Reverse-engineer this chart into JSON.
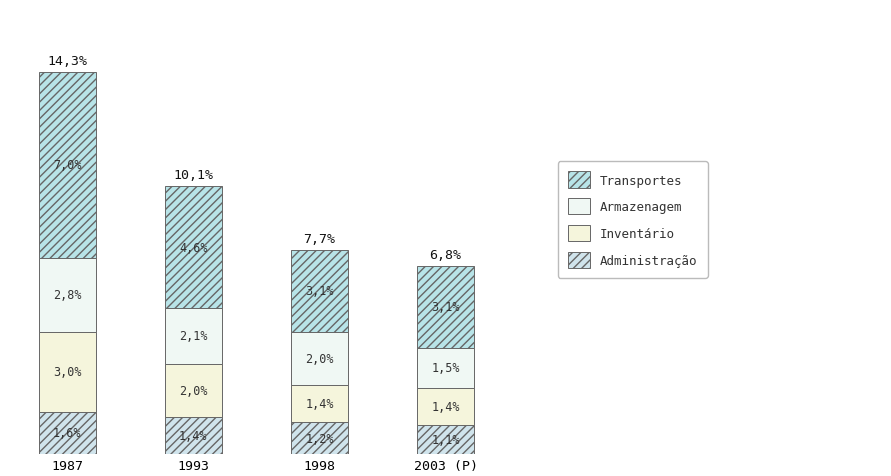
{
  "years": [
    "1987",
    "1993",
    "1998",
    "2003 (P)"
  ],
  "administracao": [
    1.6,
    1.4,
    1.2,
    1.1
  ],
  "inventario": [
    3.0,
    2.0,
    1.4,
    1.4
  ],
  "armazenagem": [
    2.8,
    2.1,
    2.0,
    1.5
  ],
  "transportes": [
    7.0,
    4.6,
    3.1,
    3.1
  ],
  "totals": [
    14.3,
    10.1,
    7.7,
    6.8
  ],
  "background_color": "#ffffff",
  "color_transportes": "#b8e4e8",
  "color_armazenagem": "#f0f8f4",
  "color_inventario": "#f5f5dc",
  "color_administracao": "#d0e4ec",
  "bar_width": 0.45
}
